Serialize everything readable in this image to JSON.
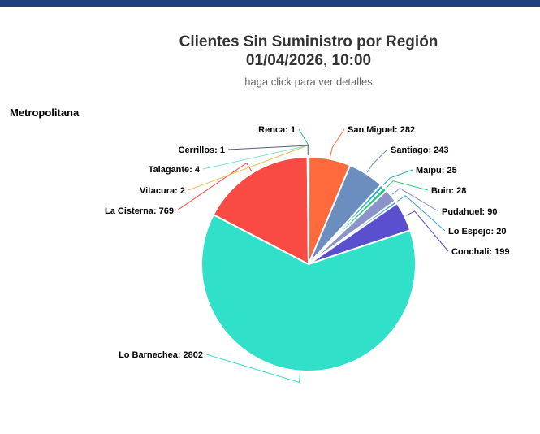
{
  "header": {
    "title_line1": "Clientes Sin Suministro por Región",
    "title_line2": "01/04/2026, 10:00",
    "subtitle": "haga click para ver detalles"
  },
  "region_label": "Metropolitana",
  "colors": {
    "top_bar": "#1f3e7a"
  },
  "chart_data": {
    "type": "pie",
    "title": "Clientes Sin Suministro por Región",
    "subtitle": "01/04/2026, 10:00",
    "slices": [
      {
        "label": "Renca",
        "value": 1,
        "color": "#2ab8a0"
      },
      {
        "label": "San Miguel",
        "value": 282,
        "color": "#ff6a3d"
      },
      {
        "label": "Santiago",
        "value": 243,
        "color": "#6c8ebf"
      },
      {
        "label": "Maipu",
        "value": 25,
        "color": "#29a3df"
      },
      {
        "label": "Buin",
        "value": 28,
        "color": "#27c77a"
      },
      {
        "label": "Pudahuel",
        "value": 90,
        "color": "#8a94c8"
      },
      {
        "label": "Lo Espejo",
        "value": 20,
        "color": "#3aa0e0"
      },
      {
        "label": "Conchali",
        "value": 199,
        "color": "#5a4fcf"
      },
      {
        "label": "Lo Barnechea",
        "value": 2802,
        "color": "#30e0c8"
      },
      {
        "label": "La Cisterna",
        "value": 769,
        "color": "#fa4a44"
      },
      {
        "label": "Vitacura",
        "value": 2,
        "color": "#e8b84a"
      },
      {
        "label": "Talagante",
        "value": 4,
        "color": "#7fe0d6"
      },
      {
        "label": "Cerrillos",
        "value": 1,
        "color": "#555a80"
      }
    ]
  }
}
